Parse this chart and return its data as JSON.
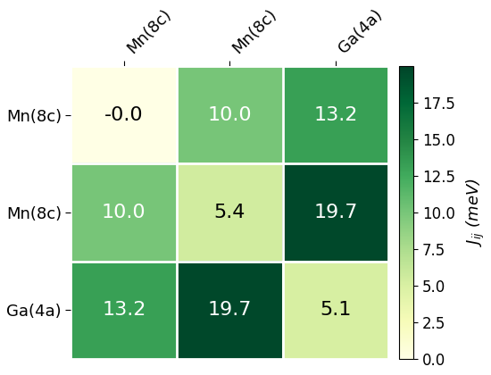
{
  "matrix": [
    [
      -0.0,
      10.0,
      13.2
    ],
    [
      10.0,
      5.4,
      19.7
    ],
    [
      13.2,
      19.7,
      5.1
    ]
  ],
  "labels_text": [
    [
      "-0.0",
      "10.0",
      "13.2"
    ],
    [
      "10.0",
      "5.4",
      "19.7"
    ],
    [
      "13.2",
      "19.7",
      "5.1"
    ]
  ],
  "row_labels": [
    "Mn(8c)",
    "Mn(8c)",
    "Ga(4a)"
  ],
  "col_labels": [
    "Mn(8c)",
    "Mn(8c)",
    "Ga(4a)"
  ],
  "cmap": "YlGn",
  "vmin": 0.0,
  "vmax": 20.0,
  "colorbar_label": "$J_{ij}$ (meV)",
  "colorbar_ticks": [
    0.0,
    2.5,
    5.0,
    7.5,
    10.0,
    12.5,
    15.0,
    17.5
  ],
  "text_color_light": "white",
  "text_color_dark": "black",
  "fontsize_text": 16,
  "fontsize_labels": 13,
  "colorbar_fontsize": 12
}
